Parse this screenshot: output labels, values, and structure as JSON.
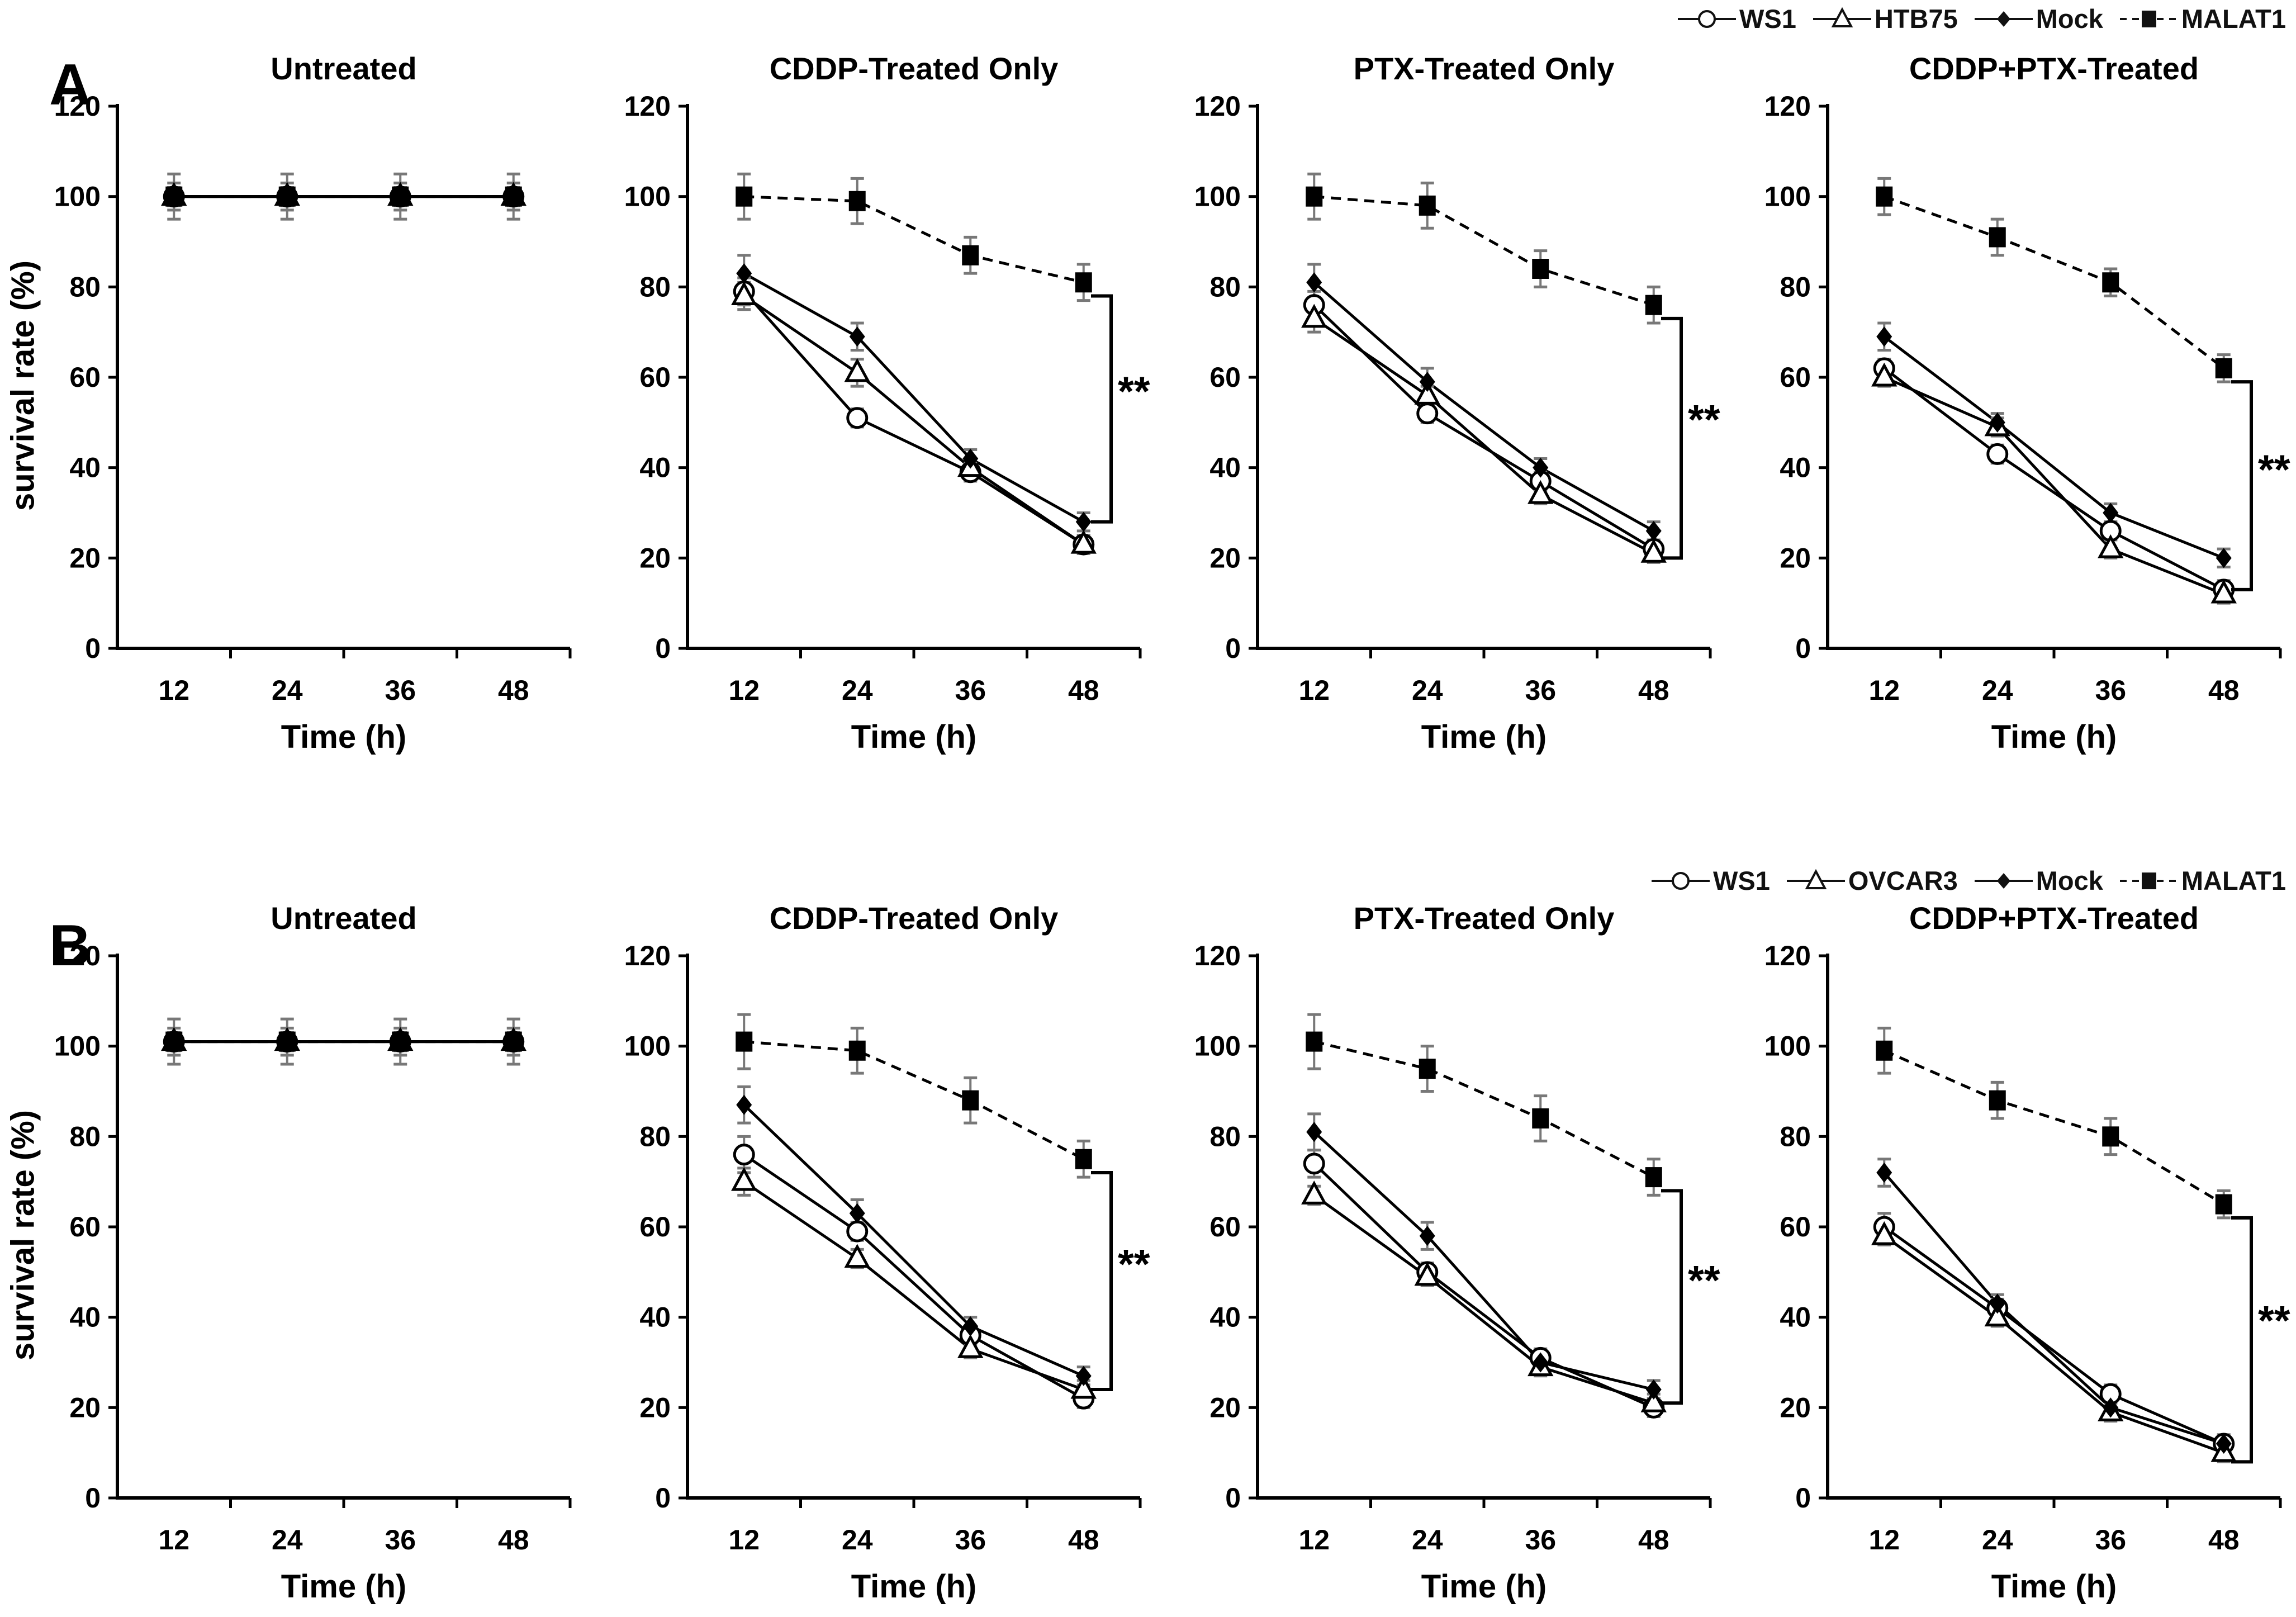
{
  "figure": {
    "panel_a_label": "A",
    "panel_b_label": "B",
    "y_axis_title": "survival rate (%)",
    "x_axis_title": "Time (h)",
    "significance_label": "**",
    "background_color": "#ffffff",
    "line_color": "#000000",
    "error_bar_color": "#787878"
  },
  "legend_a": {
    "items": [
      {
        "label": "WS1",
        "marker": "open-circle",
        "line": "solid"
      },
      {
        "label": "HTB75",
        "marker": "open-triangle",
        "line": "solid"
      },
      {
        "label": "Mock",
        "marker": "filled-diamond",
        "line": "solid"
      },
      {
        "label": "MALAT1",
        "marker": "filled-square",
        "line": "dashed"
      }
    ]
  },
  "legend_b": {
    "items": [
      {
        "label": "WS1",
        "marker": "open-circle",
        "line": "solid"
      },
      {
        "label": "OVCAR3",
        "marker": "open-triangle",
        "line": "solid"
      },
      {
        "label": "Mock",
        "marker": "filled-diamond",
        "line": "solid"
      },
      {
        "label": "MALAT1",
        "marker": "filled-square",
        "line": "dashed"
      }
    ]
  },
  "chart_data": [
    {
      "type": "line",
      "panel": "A",
      "title": "Untreated",
      "x": [
        12,
        24,
        36,
        48
      ],
      "xlabel": "Time (h)",
      "ylabel": "survival rate (%)",
      "ylim": [
        0,
        120
      ],
      "yticks": [
        0,
        20,
        40,
        60,
        80,
        100,
        120
      ],
      "series": [
        {
          "name": "WS1",
          "marker": "open-circle",
          "line": "solid",
          "values": [
            100,
            100,
            100,
            100
          ],
          "errors": [
            2,
            2,
            2,
            2
          ]
        },
        {
          "name": "HTB75",
          "marker": "open-triangle",
          "line": "solid",
          "values": [
            100,
            100,
            100,
            100
          ],
          "errors": [
            2,
            2,
            2,
            2
          ]
        },
        {
          "name": "Mock",
          "marker": "filled-diamond",
          "line": "solid",
          "values": [
            100,
            100,
            100,
            100
          ],
          "errors": [
            3,
            3,
            3,
            3
          ]
        },
        {
          "name": "MALAT1",
          "marker": "filled-square",
          "line": "dashed",
          "values": [
            100,
            100,
            100,
            100
          ],
          "errors": [
            5,
            5,
            5,
            5
          ]
        }
      ],
      "significance": null
    },
    {
      "type": "line",
      "panel": "A",
      "title": "CDDP-Treated  Only",
      "x": [
        12,
        24,
        36,
        48
      ],
      "xlabel": "Time (h)",
      "ylabel": "survival rate (%)",
      "ylim": [
        0,
        120
      ],
      "yticks": [
        0,
        20,
        40,
        60,
        80,
        100,
        120
      ],
      "series": [
        {
          "name": "WS1",
          "marker": "open-circle",
          "line": "solid",
          "values": [
            79,
            51,
            39,
            23
          ],
          "errors": [
            3,
            2,
            2,
            2
          ]
        },
        {
          "name": "HTB75",
          "marker": "open-triangle",
          "line": "solid",
          "values": [
            78,
            61,
            40,
            23
          ],
          "errors": [
            3,
            3,
            2,
            2
          ]
        },
        {
          "name": "Mock",
          "marker": "filled-diamond",
          "line": "solid",
          "values": [
            83,
            69,
            42,
            28
          ],
          "errors": [
            4,
            3,
            2,
            2
          ]
        },
        {
          "name": "MALAT1",
          "marker": "filled-square",
          "line": "dashed",
          "values": [
            100,
            99,
            87,
            81
          ],
          "errors": [
            5,
            5,
            4,
            4
          ]
        }
      ],
      "significance": {
        "label": "**",
        "top": 78,
        "bottom": 28
      }
    },
    {
      "type": "line",
      "panel": "A",
      "title": "PTX-Treated  Only",
      "x": [
        12,
        24,
        36,
        48
      ],
      "xlabel": "Time (h)",
      "ylabel": "survival rate (%)",
      "ylim": [
        0,
        120
      ],
      "yticks": [
        0,
        20,
        40,
        60,
        80,
        100,
        120
      ],
      "series": [
        {
          "name": "WS1",
          "marker": "open-circle",
          "line": "solid",
          "values": [
            76,
            52,
            37,
            22
          ],
          "errors": [
            3,
            2,
            2,
            2
          ]
        },
        {
          "name": "HTB75",
          "marker": "open-triangle",
          "line": "solid",
          "values": [
            73,
            56,
            34,
            21
          ],
          "errors": [
            3,
            2,
            2,
            2
          ]
        },
        {
          "name": "Mock",
          "marker": "filled-diamond",
          "line": "solid",
          "values": [
            81,
            59,
            40,
            26
          ],
          "errors": [
            4,
            3,
            2,
            2
          ]
        },
        {
          "name": "MALAT1",
          "marker": "filled-square",
          "line": "dashed",
          "values": [
            100,
            98,
            84,
            76
          ],
          "errors": [
            5,
            5,
            4,
            4
          ]
        }
      ],
      "significance": {
        "label": "**",
        "top": 73,
        "bottom": 20
      }
    },
    {
      "type": "line",
      "panel": "A",
      "title": "CDDP+PTX-Treated",
      "x": [
        12,
        24,
        36,
        48
      ],
      "xlabel": "Time (h)",
      "ylabel": "survival rate (%)",
      "ylim": [
        0,
        120
      ],
      "yticks": [
        0,
        20,
        40,
        60,
        80,
        100,
        120
      ],
      "series": [
        {
          "name": "WS1",
          "marker": "open-circle",
          "line": "solid",
          "values": [
            62,
            43,
            26,
            13
          ],
          "errors": [
            2,
            2,
            2,
            2
          ]
        },
        {
          "name": "HTB75",
          "marker": "open-triangle",
          "line": "solid",
          "values": [
            60,
            49,
            22,
            12
          ],
          "errors": [
            2,
            2,
            2,
            2
          ]
        },
        {
          "name": "Mock",
          "marker": "filled-diamond",
          "line": "solid",
          "values": [
            69,
            50,
            30,
            20
          ],
          "errors": [
            3,
            2,
            2,
            2
          ]
        },
        {
          "name": "MALAT1",
          "marker": "filled-square",
          "line": "dashed",
          "values": [
            100,
            91,
            81,
            62
          ],
          "errors": [
            4,
            4,
            3,
            3
          ]
        }
      ],
      "significance": {
        "label": "**",
        "top": 59,
        "bottom": 13
      }
    },
    {
      "type": "line",
      "panel": "B",
      "title": "Untreated",
      "x": [
        12,
        24,
        36,
        48
      ],
      "xlabel": "Time (h)",
      "ylabel": "survival rate (%)",
      "ylim": [
        0,
        120
      ],
      "yticks": [
        0,
        20,
        40,
        60,
        80,
        100,
        120
      ],
      "series": [
        {
          "name": "WS1",
          "marker": "open-circle",
          "line": "solid",
          "values": [
            101,
            101,
            101,
            101
          ],
          "errors": [
            2,
            2,
            2,
            2
          ]
        },
        {
          "name": "OVCAR3",
          "marker": "open-triangle",
          "line": "solid",
          "values": [
            101,
            101,
            101,
            101
          ],
          "errors": [
            2,
            2,
            2,
            2
          ]
        },
        {
          "name": "Mock",
          "marker": "filled-diamond",
          "line": "solid",
          "values": [
            101,
            101,
            101,
            101
          ],
          "errors": [
            3,
            3,
            3,
            3
          ]
        },
        {
          "name": "MALAT1",
          "marker": "filled-square",
          "line": "dashed",
          "values": [
            101,
            101,
            101,
            101
          ],
          "errors": [
            5,
            5,
            5,
            5
          ]
        }
      ],
      "significance": null
    },
    {
      "type": "line",
      "panel": "B",
      "title": "CDDP-Treated  Only",
      "x": [
        12,
        24,
        36,
        48
      ],
      "xlabel": "Time (h)",
      "ylabel": "survival rate (%)",
      "ylim": [
        0,
        120
      ],
      "yticks": [
        0,
        20,
        40,
        60,
        80,
        100,
        120
      ],
      "series": [
        {
          "name": "WS1",
          "marker": "open-circle",
          "line": "solid",
          "values": [
            76,
            59,
            36,
            22
          ],
          "errors": [
            4,
            2,
            2,
            2
          ]
        },
        {
          "name": "OVCAR3",
          "marker": "open-triangle",
          "line": "solid",
          "values": [
            70,
            53,
            33,
            24
          ],
          "errors": [
            3,
            2,
            2,
            2
          ]
        },
        {
          "name": "Mock",
          "marker": "filled-diamond",
          "line": "solid",
          "values": [
            87,
            63,
            38,
            27
          ],
          "errors": [
            4,
            3,
            2,
            2
          ]
        },
        {
          "name": "MALAT1",
          "marker": "filled-square",
          "line": "dashed",
          "values": [
            101,
            99,
            88,
            75
          ],
          "errors": [
            6,
            5,
            5,
            4
          ]
        }
      ],
      "significance": {
        "label": "**",
        "top": 72,
        "bottom": 24
      }
    },
    {
      "type": "line",
      "panel": "B",
      "title": "PTX-Treated  Only",
      "x": [
        12,
        24,
        36,
        48
      ],
      "xlabel": "Time (h)",
      "ylabel": "survival rate (%)",
      "ylim": [
        0,
        120
      ],
      "yticks": [
        0,
        20,
        40,
        60,
        80,
        100,
        120
      ],
      "series": [
        {
          "name": "WS1",
          "marker": "open-circle",
          "line": "solid",
          "values": [
            74,
            50,
            31,
            20
          ],
          "errors": [
            3,
            2,
            2,
            2
          ]
        },
        {
          "name": "OVCAR3",
          "marker": "open-triangle",
          "line": "solid",
          "values": [
            67,
            49,
            29,
            21
          ],
          "errors": [
            2,
            2,
            2,
            2
          ]
        },
        {
          "name": "Mock",
          "marker": "filled-diamond",
          "line": "solid",
          "values": [
            81,
            58,
            30,
            24
          ],
          "errors": [
            4,
            3,
            2,
            2
          ]
        },
        {
          "name": "MALAT1",
          "marker": "filled-square",
          "line": "dashed",
          "values": [
            101,
            95,
            84,
            71
          ],
          "errors": [
            6,
            5,
            5,
            4
          ]
        }
      ],
      "significance": {
        "label": "**",
        "top": 68,
        "bottom": 21
      }
    },
    {
      "type": "line",
      "panel": "B",
      "title": "CDDP+PTX-Treated",
      "x": [
        12,
        24,
        36,
        48
      ],
      "xlabel": "Time (h)",
      "ylabel": "survival rate (%)",
      "ylim": [
        0,
        120
      ],
      "yticks": [
        0,
        20,
        40,
        60,
        80,
        100,
        120
      ],
      "series": [
        {
          "name": "WS1",
          "marker": "open-circle",
          "line": "solid",
          "values": [
            60,
            42,
            23,
            12
          ],
          "errors": [
            3,
            2,
            2,
            2
          ]
        },
        {
          "name": "OVCAR3",
          "marker": "open-triangle",
          "line": "solid",
          "values": [
            58,
            40,
            19,
            10
          ],
          "errors": [
            2,
            2,
            2,
            2
          ]
        },
        {
          "name": "Mock",
          "marker": "filled-diamond",
          "line": "solid",
          "values": [
            72,
            43,
            20,
            12
          ],
          "errors": [
            3,
            2,
            2,
            2
          ]
        },
        {
          "name": "MALAT1",
          "marker": "filled-square",
          "line": "dashed",
          "values": [
            99,
            88,
            80,
            65
          ],
          "errors": [
            5,
            4,
            4,
            3
          ]
        }
      ],
      "significance": {
        "label": "**",
        "top": 62,
        "bottom": 8
      }
    }
  ]
}
